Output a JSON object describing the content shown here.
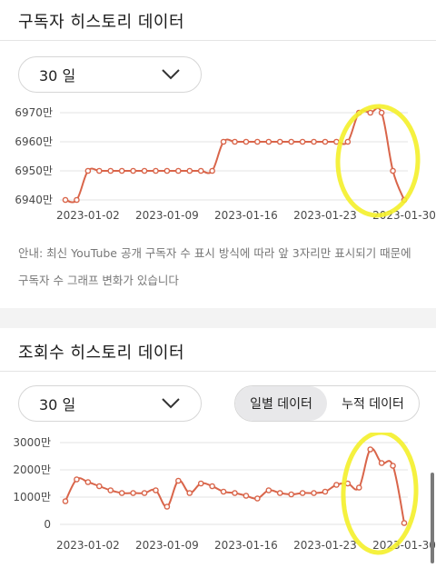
{
  "subscribers": {
    "title": "구독자 히스토리 데이터",
    "period_label": "30 일",
    "notice": "안내: 최신 YouTube 공개 구독자 수 표시 방식에 따라 앞 3자리만 표시되기 때문에 구독자 수 그래프 변화가 있습니다"
  },
  "views": {
    "title": "조회수 히스토리 데이터",
    "period_label": "30 일",
    "tab_daily": "일별 데이터",
    "tab_cumulative": "누적 데이터"
  },
  "colors": {
    "line": "#d9654a",
    "highlight": "#f4f02a"
  },
  "icons": {
    "dropdown": "chevron-down-icon"
  },
  "chart_data": [
    {
      "type": "line",
      "title": "",
      "x": [
        "2022-12-31",
        "2023-01-01",
        "2023-01-02",
        "2023-01-03",
        "2023-01-04",
        "2023-01-05",
        "2023-01-06",
        "2023-01-07",
        "2023-01-08",
        "2023-01-09",
        "2023-01-10",
        "2023-01-11",
        "2023-01-12",
        "2023-01-13",
        "2023-01-14",
        "2023-01-15",
        "2023-01-16",
        "2023-01-17",
        "2023-01-18",
        "2023-01-19",
        "2023-01-20",
        "2023-01-21",
        "2023-01-22",
        "2023-01-23",
        "2023-01-24",
        "2023-01-25",
        "2023-01-26",
        "2023-01-27",
        "2023-01-28",
        "2023-01-29",
        "2023-01-30"
      ],
      "series": [
        {
          "values": [
            6940,
            6940,
            6950,
            6950,
            6950,
            6950,
            6950,
            6950,
            6950,
            6950,
            6950,
            6950,
            6950,
            6950,
            6960,
            6960,
            6960,
            6960,
            6960,
            6960,
            6960,
            6960,
            6960,
            6960,
            6960,
            6960,
            6970,
            6970,
            6970,
            6950,
            6940
          ]
        }
      ],
      "x_ticks": [
        "2023-01-02",
        "2023-01-09",
        "2023-01-16",
        "2023-01-23",
        "2023-01-30"
      ],
      "y_ticks": [
        "6940만",
        "6950만",
        "6960만",
        "6970만"
      ],
      "ylim": [
        6940,
        6970
      ],
      "grid": "horizontal"
    },
    {
      "type": "line",
      "title": "",
      "x": [
        "2022-12-31",
        "2023-01-01",
        "2023-01-02",
        "2023-01-03",
        "2023-01-04",
        "2023-01-05",
        "2023-01-06",
        "2023-01-07",
        "2023-01-08",
        "2023-01-09",
        "2023-01-10",
        "2023-01-11",
        "2023-01-12",
        "2023-01-13",
        "2023-01-14",
        "2023-01-15",
        "2023-01-16",
        "2023-01-17",
        "2023-01-18",
        "2023-01-19",
        "2023-01-20",
        "2023-01-21",
        "2023-01-22",
        "2023-01-23",
        "2023-01-24",
        "2023-01-25",
        "2023-01-26",
        "2023-01-27",
        "2023-01-28",
        "2023-01-29",
        "2023-01-30"
      ],
      "series": [
        {
          "values": [
            850,
            1650,
            1550,
            1400,
            1250,
            1150,
            1150,
            1150,
            1250,
            650,
            1600,
            1150,
            1500,
            1400,
            1200,
            1150,
            1050,
            950,
            1250,
            1150,
            1100,
            1150,
            1150,
            1200,
            1450,
            1500,
            1350,
            2750,
            2250,
            2150,
            50
          ]
        }
      ],
      "x_ticks": [
        "2023-01-02",
        "2023-01-09",
        "2023-01-16",
        "2023-01-23",
        "2023-01-30"
      ],
      "y_ticks": [
        "0",
        "1000만",
        "2000만",
        "3000만"
      ],
      "ylim": [
        0,
        3000
      ],
      "grid": "horizontal"
    }
  ]
}
